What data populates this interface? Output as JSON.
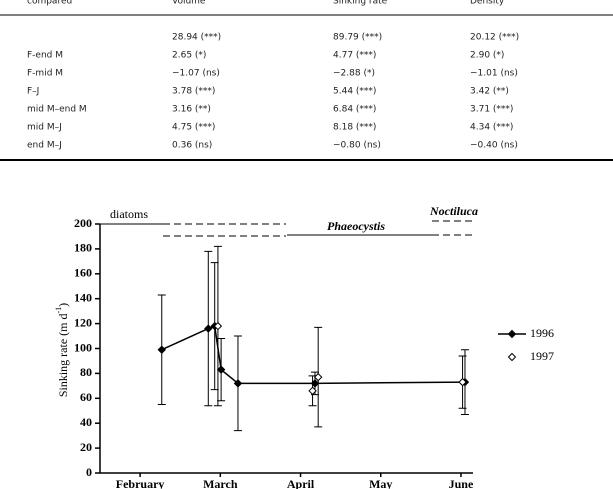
{
  "table": {
    "header": [
      "compared",
      "Volume",
      "Sinking rate",
      "Density"
    ],
    "rows": [
      [
        null,
        "28.94 (***)",
        "89.79 (***)",
        "20.12 (***)"
      ],
      [
        "F-end M",
        "2.65 (*)",
        "4.77 (***)",
        "2.90 (*)"
      ],
      [
        "F-mid M",
        "−1.07 (ns)",
        "−2.88 (*)",
        "−1.01 (ns)"
      ],
      [
        "F–J",
        "3.78 (***)",
        "5.44 (***)",
        "3.42 (**)"
      ],
      [
        "mid M–end M",
        "3.16 (**)",
        "6.84 (***)",
        "3.71 (***)"
      ],
      [
        "mid M–J",
        "4.75 (***)",
        "8.18 (***)",
        "4.34 (***)"
      ],
      [
        "end M–J",
        "0.36 (ns)",
        "−0.80 (ns)",
        "−0.40 (ns)"
      ]
    ]
  },
  "chart_data": {
    "type": "line",
    "y_label": {
      "text": "Sinking rate (m d",
      "sup": "-1",
      "end": ")"
    },
    "annotations": {
      "diatoms": "diatoms",
      "phaeocystis": "Phaeocystis",
      "noctiluca": "Noctiluca"
    },
    "xlim": [
      2,
      6.65
    ],
    "xticks": [
      {
        "value": 2.5,
        "label": "February"
      },
      {
        "value": 3.5,
        "label": "March"
      },
      {
        "value": 4.5,
        "label": "April"
      },
      {
        "value": 5.5,
        "label": "May"
      },
      {
        "value": 6.5,
        "label": "June"
      }
    ],
    "ylim": [
      0,
      200
    ],
    "yticks": [
      0,
      20,
      40,
      60,
      80,
      100,
      120,
      140,
      160,
      180,
      200
    ],
    "series": [
      {
        "name": "1996",
        "color": "#000000",
        "marker": "filled",
        "connected": true,
        "x": [
          2.77,
          3.35,
          3.43,
          3.51,
          3.72,
          4.68,
          6.55
        ],
        "values": [
          99,
          116,
          118,
          83,
          72,
          72,
          73
        ],
        "errors": [
          44,
          62,
          51,
          25,
          38,
          9,
          26
        ]
      },
      {
        "name": "1997",
        "color": "#000000",
        "marker": "open",
        "connected": false,
        "x": [
          3.47,
          4.65,
          4.72,
          6.52
        ],
        "values": [
          118,
          66,
          77,
          73
        ],
        "errors": [
          64,
          12,
          40,
          21
        ]
      }
    ]
  }
}
